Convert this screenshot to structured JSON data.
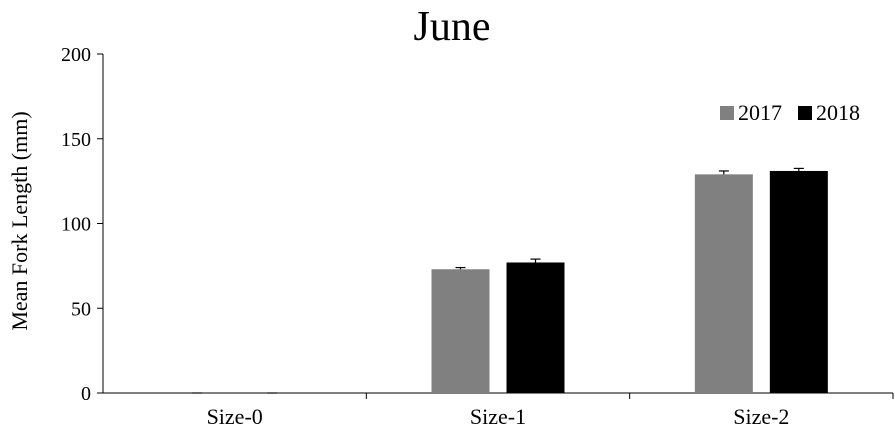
{
  "chart_data": {
    "type": "bar",
    "title": "June",
    "xlabel": "",
    "ylabel": "Mean Fork Length (mm)",
    "ylim": [
      0,
      200
    ],
    "yticks": [
      "0",
      "50",
      "100",
      "150",
      "200"
    ],
    "categories": [
      "Size-0",
      "Size-1",
      "Size-2"
    ],
    "series": [
      {
        "name": "2017",
        "values": [
          0,
          73,
          129
        ],
        "errors": [
          0,
          1,
          2
        ],
        "color": "#808080"
      },
      {
        "name": "2018",
        "values": [
          0,
          77,
          131
        ],
        "errors": [
          0,
          2,
          1.5
        ],
        "color": "#000000"
      }
    ],
    "grid": false,
    "legend_position": "top-right"
  }
}
